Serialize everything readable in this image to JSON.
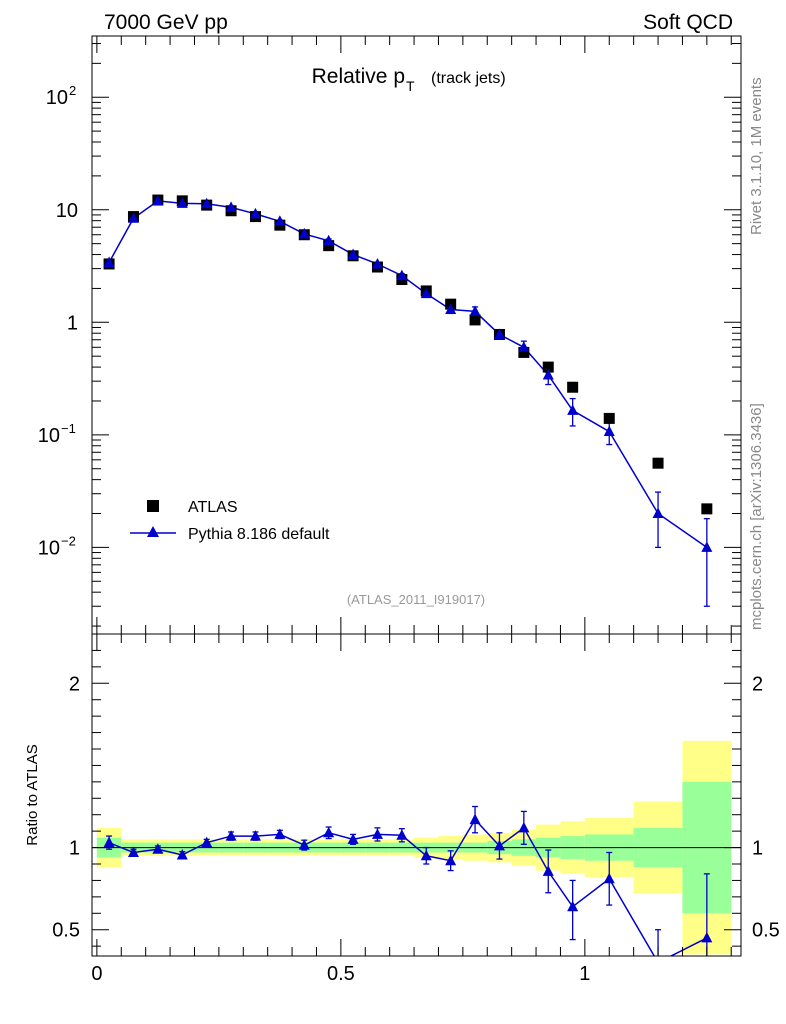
{
  "header": {
    "left_label": "7000 GeV pp",
    "right_label": "Soft QCD"
  },
  "side_labels": {
    "rivet": "Rivet 3.1.10,  1M events",
    "mcplots": "mcplots.cern.ch [arXiv:1306.3436]"
  },
  "chart_data": [
    {
      "type": "scatter",
      "panel": "main",
      "title_main": "Relative p",
      "title_sub": "T",
      "title_suffix": "(track jets)",
      "analysis_id": "(ATLAS_2011_I919017)",
      "yscale": "log",
      "ylim": [
        0.0017,
        350
      ],
      "xlim": [
        -0.01,
        1.32
      ],
      "y_ticks": [
        {
          "value": 0.01,
          "base": "10",
          "exp": "−2"
        },
        {
          "value": 0.1,
          "base": "10",
          "exp": "−1"
        },
        {
          "value": 1,
          "base": "1",
          "exp": ""
        },
        {
          "value": 10,
          "base": "10",
          "exp": ""
        },
        {
          "value": 100,
          "base": "10",
          "exp": "2"
        }
      ],
      "legend_position": "lower-left",
      "series": [
        {
          "name": "ATLAS",
          "marker": "square",
          "color": "#000000",
          "x": [
            0.025,
            0.075,
            0.125,
            0.175,
            0.225,
            0.275,
            0.325,
            0.375,
            0.425,
            0.475,
            0.525,
            0.575,
            0.625,
            0.675,
            0.725,
            0.775,
            0.825,
            0.875,
            0.925,
            0.975,
            1.05,
            1.15,
            1.25
          ],
          "y": [
            3.3,
            8.7,
            12.2,
            12.0,
            11.0,
            9.8,
            8.7,
            7.3,
            6.0,
            4.8,
            3.9,
            3.1,
            2.4,
            1.9,
            1.45,
            1.05,
            0.78,
            0.54,
            0.4,
            0.265,
            0.14,
            0.056,
            0.022
          ]
        },
        {
          "name": "Pythia 8.186 default",
          "marker": "triangle",
          "color": "#0000cc",
          "x": [
            0.025,
            0.075,
            0.125,
            0.175,
            0.225,
            0.275,
            0.325,
            0.375,
            0.425,
            0.475,
            0.525,
            0.575,
            0.625,
            0.675,
            0.725,
            0.775,
            0.825,
            0.875,
            0.925,
            0.975,
            1.05,
            1.15,
            1.25
          ],
          "y": [
            3.4,
            8.4,
            12.0,
            11.4,
            11.3,
            10.5,
            9.2,
            7.9,
            6.1,
            5.3,
            4.0,
            3.3,
            2.6,
            1.8,
            1.3,
            1.25,
            0.78,
            0.6,
            0.34,
            0.165,
            0.107,
            0.02,
            0.01
          ],
          "y_err_low": [
            0.1,
            0.2,
            0.3,
            0.3,
            0.3,
            0.3,
            0.3,
            0.2,
            0.2,
            0.2,
            0.15,
            0.12,
            0.1,
            0.1,
            0.1,
            0.12,
            0.07,
            0.08,
            0.06,
            0.045,
            0.025,
            0.01,
            0.007
          ],
          "y_err_high": [
            0.1,
            0.2,
            0.3,
            0.3,
            0.3,
            0.3,
            0.3,
            0.2,
            0.2,
            0.2,
            0.15,
            0.12,
            0.1,
            0.1,
            0.1,
            0.12,
            0.07,
            0.08,
            0.06,
            0.045,
            0.025,
            0.011,
            0.008
          ]
        }
      ]
    },
    {
      "type": "scatter",
      "panel": "ratio",
      "ylabel": "Ratio to ATLAS",
      "ylim": [
        0.34,
        2.3
      ],
      "xlim": [
        -0.01,
        1.32
      ],
      "y_ticks": [
        0.5,
        1,
        2
      ],
      "y_tick_labels": [
        "0.5",
        "1",
        "2"
      ],
      "x_ticks": [
        0,
        0.5,
        1
      ],
      "x_tick_labels": [
        "0",
        "0.5",
        "1"
      ],
      "reference_line": 1,
      "bands": {
        "inner_color": "#99ff99",
        "outer_color": "#ffff88",
        "edges": [
          0.0,
          0.05,
          0.1,
          0.15,
          0.2,
          0.25,
          0.3,
          0.35,
          0.4,
          0.45,
          0.5,
          0.55,
          0.6,
          0.65,
          0.7,
          0.75,
          0.8,
          0.85,
          0.9,
          0.95,
          1.0,
          1.1,
          1.2,
          1.3
        ],
        "inner_low": [
          0.94,
          0.97,
          0.97,
          0.97,
          0.97,
          0.97,
          0.97,
          0.97,
          0.97,
          0.97,
          0.97,
          0.97,
          0.97,
          0.97,
          0.97,
          0.97,
          0.96,
          0.95,
          0.94,
          0.93,
          0.92,
          0.88,
          0.6
        ],
        "inner_high": [
          1.06,
          1.03,
          1.03,
          1.03,
          1.03,
          1.03,
          1.03,
          1.03,
          1.03,
          1.03,
          1.03,
          1.03,
          1.03,
          1.03,
          1.03,
          1.03,
          1.04,
          1.05,
          1.06,
          1.07,
          1.08,
          1.12,
          1.4
        ],
        "outer_low": [
          0.88,
          0.95,
          0.95,
          0.95,
          0.95,
          0.95,
          0.95,
          0.95,
          0.95,
          0.95,
          0.95,
          0.95,
          0.95,
          0.94,
          0.93,
          0.92,
          0.91,
          0.89,
          0.86,
          0.84,
          0.82,
          0.72,
          0.35
        ],
        "outer_high": [
          1.12,
          1.05,
          1.05,
          1.05,
          1.05,
          1.05,
          1.05,
          1.05,
          1.05,
          1.05,
          1.05,
          1.05,
          1.05,
          1.06,
          1.07,
          1.08,
          1.09,
          1.11,
          1.14,
          1.16,
          1.18,
          1.28,
          1.65
        ]
      },
      "series": [
        {
          "name": "Pythia 8.186 default",
          "marker": "triangle",
          "color": "#0000cc",
          "x": [
            0.025,
            0.075,
            0.125,
            0.175,
            0.225,
            0.275,
            0.325,
            0.375,
            0.425,
            0.475,
            0.525,
            0.575,
            0.625,
            0.675,
            0.725,
            0.775,
            0.825,
            0.875,
            0.925,
            0.975,
            1.05,
            1.15,
            1.25
          ],
          "y": [
            1.03,
            0.97,
            0.99,
            0.955,
            1.03,
            1.07,
            1.07,
            1.08,
            1.015,
            1.09,
            1.05,
            1.08,
            1.075,
            0.95,
            0.92,
            1.17,
            1.01,
            1.12,
            0.855,
            0.64,
            0.81,
            0.3,
            0.45
          ],
          "y_err_low": [
            0.04,
            0.02,
            0.02,
            0.02,
            0.02,
            0.025,
            0.025,
            0.025,
            0.03,
            0.035,
            0.03,
            0.04,
            0.04,
            0.05,
            0.06,
            0.08,
            0.08,
            0.1,
            0.13,
            0.2,
            0.16,
            0.2,
            0.4
          ],
          "y_err_high": [
            0.04,
            0.02,
            0.02,
            0.02,
            0.02,
            0.025,
            0.025,
            0.025,
            0.03,
            0.035,
            0.03,
            0.04,
            0.04,
            0.05,
            0.06,
            0.08,
            0.08,
            0.1,
            0.13,
            0.16,
            0.16,
            0.2,
            0.39
          ]
        }
      ]
    }
  ]
}
